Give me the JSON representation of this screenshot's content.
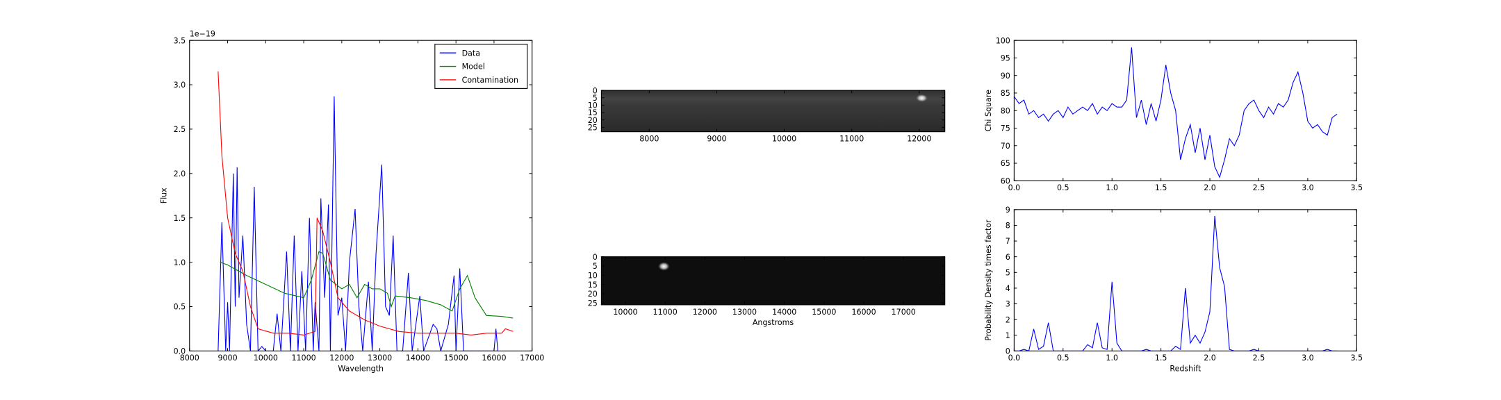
{
  "chart_data": [
    {
      "type": "line",
      "xlabel": "Wavelength",
      "ylabel": "Flux",
      "offset_label": "1e−19",
      "xlim": [
        8000,
        17000
      ],
      "xticks": [
        8000,
        9000,
        10000,
        11000,
        12000,
        13000,
        14000,
        15000,
        16000,
        17000
      ],
      "ylim": [
        0,
        3.5
      ],
      "yticks": [
        {
          "value": 0,
          "label": "0.0"
        },
        0.5,
        {
          "value": 1,
          "label": "1.0"
        },
        1.5,
        {
          "value": 2,
          "label": "2.0"
        },
        2.5,
        {
          "value": 3,
          "label": "3.0"
        },
        3.5
      ],
      "legend": "upper right",
      "series": [
        {
          "name": "Data",
          "color": "#0000ff",
          "x": [
            8750,
            8850,
            8950,
            9000,
            9050,
            9150,
            9200,
            9250,
            9300,
            9400,
            9500,
            9600,
            9700,
            9800,
            9900,
            10000,
            10200,
            10300,
            10400,
            10550,
            10650,
            10750,
            10850,
            10950,
            11050,
            11150,
            11250,
            11300,
            11400,
            11450,
            11550,
            11650,
            11700,
            11800,
            11900,
            12000,
            12100,
            12200,
            12350,
            12450,
            12550,
            12700,
            12800,
            12900,
            13050,
            13150,
            13250,
            13350,
            13450,
            13600,
            13750,
            13850,
            14050,
            14150,
            14400,
            14500,
            14600,
            14800,
            14950,
            15000,
            15100,
            15200,
            16000,
            16050,
            16100
          ],
          "values": [
            0,
            1.45,
            0,
            0.55,
            0,
            2.0,
            0.5,
            2.07,
            0.6,
            1.3,
            0.3,
            0,
            1.85,
            0,
            0.05,
            0,
            0,
            0.42,
            0,
            1.12,
            0,
            1.3,
            0,
            0.9,
            0,
            1.5,
            0,
            0.55,
            0,
            1.72,
            0.6,
            1.65,
            0,
            2.87,
            0.4,
            0.6,
            0,
            1.0,
            1.6,
            0.5,
            0,
            0.78,
            0,
            1.1,
            2.1,
            0.5,
            0.4,
            1.3,
            0,
            0,
            0.88,
            0,
            0.62,
            0,
            0.3,
            0.25,
            0,
            0.3,
            0.85,
            0,
            0.93,
            0,
            0,
            0.25,
            0
          ]
        },
        {
          "name": "Model",
          "color": "#008000",
          "x": [
            8800,
            9000,
            9500,
            10000,
            10500,
            11000,
            11200,
            11400,
            11500,
            11700,
            12000,
            12200,
            12400,
            12600,
            12800,
            13000,
            13200,
            13300,
            13400,
            13800,
            14200,
            14600,
            14900,
            15100,
            15300,
            15500,
            15800,
            16200,
            16500
          ],
          "values": [
            1.0,
            0.97,
            0.85,
            0.75,
            0.65,
            0.6,
            0.8,
            1.12,
            1.1,
            0.8,
            0.7,
            0.75,
            0.6,
            0.75,
            0.7,
            0.7,
            0.65,
            0.5,
            0.62,
            0.6,
            0.57,
            0.52,
            0.45,
            0.7,
            0.85,
            0.6,
            0.4,
            0.39,
            0.37
          ]
        },
        {
          "name": "Contamination",
          "color": "#ff0000",
          "x": [
            8750,
            8850,
            9000,
            9200,
            9400,
            9600,
            9800,
            10200,
            10600,
            11000,
            11300,
            11350,
            11500,
            11700,
            11900,
            12200,
            12600,
            13000,
            13500,
            14000,
            14500,
            15000,
            15400,
            15800,
            16200,
            16300,
            16500
          ],
          "values": [
            3.15,
            2.2,
            1.5,
            1.1,
            0.9,
            0.5,
            0.25,
            0.2,
            0.2,
            0.18,
            0.22,
            1.5,
            1.35,
            1.0,
            0.6,
            0.45,
            0.35,
            0.28,
            0.22,
            0.2,
            0.2,
            0.2,
            0.18,
            0.2,
            0.2,
            0.25,
            0.22
          ]
        }
      ]
    },
    {
      "type": "image",
      "xlim": [
        7290,
        12380
      ],
      "xticks": [
        8000,
        9000,
        10000,
        11000,
        12000
      ],
      "ylim": [
        28,
        0
      ],
      "yticks": [
        0,
        5,
        10,
        15,
        20,
        25
      ]
    },
    {
      "type": "image",
      "xlabel": "Angstroms",
      "xlim": [
        9395,
        18040
      ],
      "xticks": [
        10000,
        11000,
        12000,
        13000,
        14000,
        15000,
        16000,
        17000
      ],
      "ylim": [
        26,
        0
      ],
      "yticks": [
        0,
        5,
        10,
        15,
        20,
        25
      ]
    },
    {
      "type": "line",
      "ylabel": "Chi Square",
      "xlim": [
        0,
        3.5
      ],
      "xticks": [
        {
          "value": 0,
          "label": "0.0"
        },
        0.5,
        {
          "value": 1,
          "label": "1.0"
        },
        1.5,
        {
          "value": 2,
          "label": "2.0"
        },
        2.5,
        {
          "value": 3,
          "label": "3.0"
        },
        3.5
      ],
      "ylim": [
        60,
        100
      ],
      "yticks": [
        60,
        65,
        70,
        75,
        80,
        85,
        90,
        95,
        100
      ],
      "x": [
        0,
        0.05,
        0.1,
        0.15,
        0.2,
        0.25,
        0.3,
        0.35,
        0.4,
        0.45,
        0.5,
        0.55,
        0.6,
        0.65,
        0.7,
        0.75,
        0.8,
        0.85,
        0.9,
        0.95,
        1.0,
        1.05,
        1.1,
        1.15,
        1.2,
        1.25,
        1.3,
        1.35,
        1.4,
        1.45,
        1.5,
        1.55,
        1.6,
        1.65,
        1.7,
        1.75,
        1.8,
        1.85,
        1.9,
        1.95,
        2.0,
        2.05,
        2.1,
        2.15,
        2.2,
        2.25,
        2.3,
        2.35,
        2.4,
        2.45,
        2.5,
        2.55,
        2.6,
        2.65,
        2.7,
        2.75,
        2.8,
        2.85,
        2.9,
        2.95,
        3.0,
        3.05,
        3.1,
        3.15,
        3.2,
        3.25,
        3.3
      ],
      "series": [
        {
          "color": "#0000ff",
          "values": [
            84,
            82,
            83,
            79,
            80,
            78,
            79,
            77,
            79,
            80,
            78,
            81,
            79,
            80,
            81,
            80,
            82,
            79,
            81,
            80,
            82,
            81,
            81,
            83,
            98,
            78,
            83,
            76,
            82,
            77,
            83,
            93,
            85,
            80,
            66,
            72,
            76,
            68,
            75,
            66,
            73,
            64,
            61,
            66,
            72,
            70,
            73,
            80,
            82,
            83,
            80,
            78,
            81,
            79,
            82,
            81,
            83,
            88,
            91,
            85,
            77,
            75,
            76,
            74,
            73,
            78,
            79
          ]
        }
      ]
    },
    {
      "type": "line",
      "xlabel": "Redshift",
      "ylabel": "Probability Density times factor",
      "xlim": [
        0,
        3.5
      ],
      "xticks": [
        {
          "value": 0,
          "label": "0.0"
        },
        0.5,
        {
          "value": 1,
          "label": "1.0"
        },
        1.5,
        {
          "value": 2,
          "label": "2.0"
        },
        2.5,
        {
          "value": 3,
          "label": "3.0"
        },
        3.5
      ],
      "ylim": [
        0,
        9
      ],
      "yticks": [
        0,
        1,
        2,
        3,
        4,
        5,
        6,
        7,
        8,
        9
      ],
      "x": [
        0,
        0.05,
        0.1,
        0.15,
        0.2,
        0.25,
        0.3,
        0.35,
        0.4,
        0.45,
        0.5,
        0.55,
        0.6,
        0.65,
        0.7,
        0.75,
        0.8,
        0.85,
        0.9,
        0.95,
        1.0,
        1.05,
        1.1,
        1.15,
        1.2,
        1.25,
        1.3,
        1.35,
        1.4,
        1.45,
        1.5,
        1.55,
        1.6,
        1.65,
        1.7,
        1.75,
        1.8,
        1.85,
        1.9,
        1.95,
        2.0,
        2.05,
        2.1,
        2.15,
        2.2,
        2.25,
        2.3,
        2.35,
        2.4,
        2.45,
        2.5,
        2.55,
        2.6,
        2.65,
        2.7,
        2.75,
        2.8,
        2.85,
        2.9,
        2.95,
        3.0,
        3.05,
        3.1,
        3.15,
        3.2,
        3.25,
        3.3
      ],
      "series": [
        {
          "color": "#0000ff",
          "values": [
            0,
            0,
            0.1,
            0,
            1.4,
            0.1,
            0.3,
            1.8,
            0,
            0,
            0,
            0,
            0,
            0,
            0,
            0.4,
            0.2,
            1.8,
            0.2,
            0.1,
            4.4,
            0.5,
            0,
            0,
            0,
            0,
            0,
            0.1,
            0,
            0,
            0,
            0,
            0,
            0.3,
            0.1,
            4.0,
            0.5,
            1.0,
            0.5,
            1.2,
            2.5,
            8.6,
            5.3,
            4.1,
            0.1,
            0,
            0,
            0,
            0,
            0.1,
            0,
            0,
            0,
            0,
            0,
            0,
            0,
            0,
            0,
            0,
            0,
            0,
            0,
            0,
            0.1,
            0,
            0
          ]
        }
      ]
    }
  ]
}
